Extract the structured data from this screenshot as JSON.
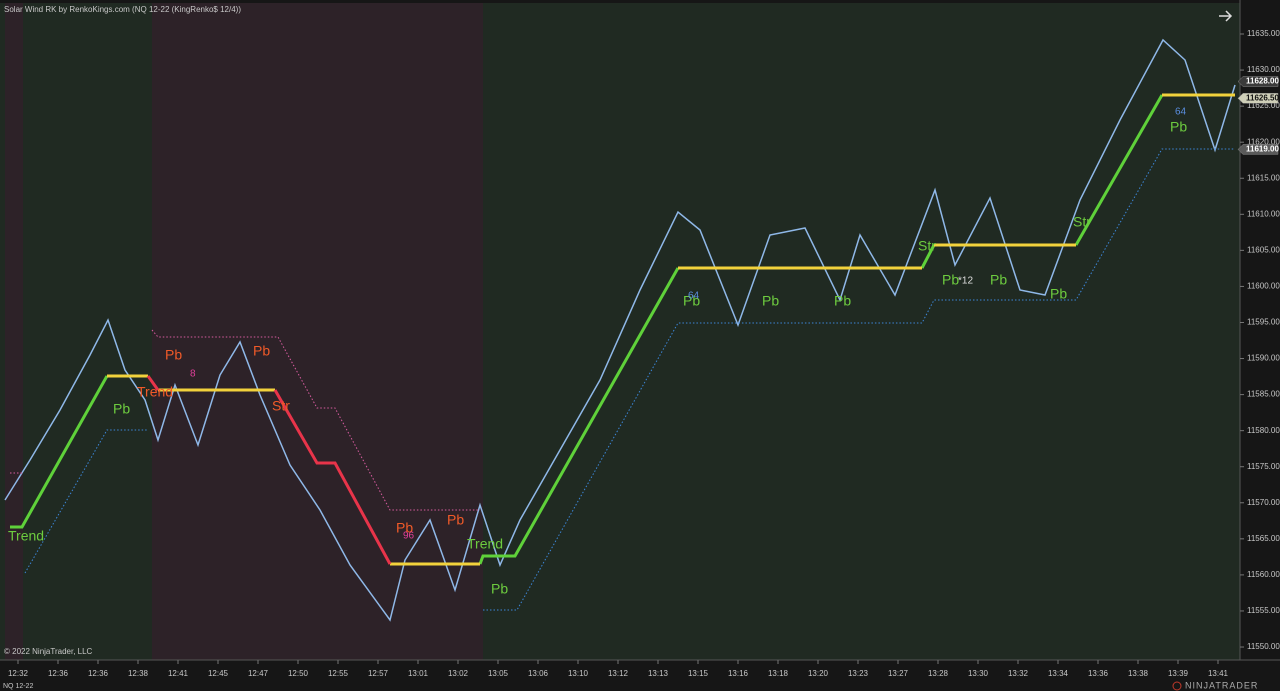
{
  "chart_data": {
    "type": "renko",
    "title": "Solar Wind RK by RenkoKings.com (NQ 12-22 (KingRenko$ 12/4))",
    "categories": [
      "12:32",
      "12:36",
      "12:36",
      "12:38",
      "12:41",
      "12:45",
      "12:47",
      "12:50",
      "12:55",
      "12:57",
      "13:01",
      "13:02",
      "13:05",
      "13:06",
      "13:10",
      "13:12",
      "13:13",
      "13:15",
      "13:16",
      "13:18",
      "13:20",
      "13:23",
      "13:27",
      "13:28",
      "13:30",
      "13:32",
      "13:34",
      "13:36",
      "13:38",
      "13:39",
      "13:41"
    ],
    "xlim": [
      -0.45,
      30.55
    ],
    "ylim": [
      11548.2,
      11639.3
    ],
    "yticks": [
      {
        "value": 11550,
        "label": "11550.00"
      },
      {
        "value": 11555,
        "label": "11555.00"
      },
      {
        "value": 11560,
        "label": "11560.00"
      },
      {
        "value": 11565,
        "label": "11565.00"
      },
      {
        "value": 11570,
        "label": "11570.00"
      },
      {
        "value": 11575,
        "label": "11575.00"
      },
      {
        "value": 11580,
        "label": "11580.00"
      },
      {
        "value": 11585,
        "label": "11585.00"
      },
      {
        "value": 11590,
        "label": "11590.00"
      },
      {
        "value": 11595,
        "label": "11595.00"
      },
      {
        "value": 11600,
        "label": "11600.00"
      },
      {
        "value": 11605,
        "label": "11605.00"
      },
      {
        "value": 11610,
        "label": "11610.00"
      },
      {
        "value": 11615,
        "label": "11615.00"
      },
      {
        "value": 11620,
        "label": "11620.00"
      },
      {
        "value": 11625,
        "label": "11625.00"
      },
      {
        "value": 11630,
        "label": "11630.00"
      },
      {
        "value": 11635,
        "label": "11635.00"
      }
    ],
    "series": [
      {
        "color": "#8fb8e8",
        "style": "solid",
        "width": 1.5,
        "x": [
          -0.325,
          0.3,
          1.05,
          1.8,
          2.25,
          2.675,
          3.175,
          3.5,
          3.925,
          4.5,
          5.05,
          5.55,
          6.05,
          6.8,
          7.55,
          8.3,
          9.3,
          9.675,
          10.3,
          10.925,
          11.55,
          12.05,
          12.55,
          13.55,
          14.55,
          15.55,
          16.5,
          17.05,
          18.0,
          18.8,
          19.675,
          20.55,
          21.05,
          21.925,
          22.925,
          23.425,
          24.3,
          25.05,
          25.675,
          26.55,
          27.55,
          28.625,
          29.175,
          29.925,
          30.425
        ],
        "values": [
          11570.39,
          11575.93,
          11582.86,
          11590.49,
          11595.34,
          11588.41,
          11584.25,
          11578.7,
          11586.33,
          11578.01,
          11587.72,
          11592.29,
          11584.94,
          11575.24,
          11569.0,
          11561.37,
          11553.75,
          11562.07,
          11567.61,
          11557.91,
          11569.69,
          11561.37,
          11567.61,
          11577.32,
          11587.02,
          11599.5,
          11610.32,
          11607.82,
          11594.65,
          11607.13,
          11608.1,
          11598.12,
          11607.13,
          11598.81,
          11613.37,
          11602.97,
          11612.26,
          11599.5,
          11598.81,
          11611.98,
          11623.08,
          11634.17,
          11631.39,
          11618.92,
          11627.93
        ]
      },
      {
        "color": "#5fd13a",
        "style": "solid",
        "width": 3,
        "x": [
          -0.2,
          0.1,
          2.225,
          null,
          11.55,
          11.625,
          12.425,
          16.5,
          null,
          22.6,
          22.9,
          null,
          26.45,
          28.6
        ],
        "values": [
          11566.64,
          11566.64,
          11587.58,
          null,
          11561.51,
          11562.62,
          11562.62,
          11602.55,
          null,
          11602.55,
          11605.74,
          null,
          11605.74,
          11626.54
        ]
      },
      {
        "color": "#f2d23c",
        "style": "solid",
        "width": 3,
        "x": [
          2.225,
          3.25,
          null,
          3.5,
          6.425,
          null,
          9.3,
          11.55,
          null,
          16.5,
          22.6,
          null,
          22.9,
          26.45,
          null,
          28.6,
          30.425
        ],
        "values": [
          11587.58,
          11587.58,
          null,
          11585.64,
          11585.64,
          null,
          11561.51,
          11561.51,
          null,
          11602.55,
          11602.55,
          null,
          11605.74,
          11605.74,
          null,
          11626.54,
          11626.54
        ]
      },
      {
        "color": "#e8344a",
        "style": "solid",
        "width": 3,
        "x": [
          3.25,
          3.5,
          null,
          6.425,
          7.475,
          7.925,
          9.3
        ],
        "values": [
          11587.58,
          11585.64,
          null,
          11585.64,
          11575.52,
          11575.52,
          11561.51
        ]
      },
      {
        "color": "#3c86d8",
        "style": "dotted",
        "width": 1,
        "x": [
          0.175,
          2.225,
          3.25,
          null,
          11.625,
          12.475,
          16.5,
          22.6,
          22.9,
          26.45,
          28.6,
          30.425
        ],
        "values": [
          11560.26,
          11580.09,
          11580.09,
          null,
          11555.13,
          11555.13,
          11594.93,
          11594.93,
          11598.12,
          11598.12,
          11619.05,
          11619.05
        ]
      },
      {
        "color": "#d85ca0",
        "style": "dotted",
        "width": 1,
        "x": [
          -0.2,
          0.1,
          null,
          3.35,
          3.5,
          6.5,
          7.475,
          7.925,
          9.3,
          11.55
        ],
        "values": [
          11574.13,
          11574.13,
          null,
          11593.96,
          11592.99,
          11592.99,
          11583.14,
          11583.14,
          11569.0,
          11569.0
        ]
      }
    ],
    "price_markers": [
      {
        "value": 11628,
        "label": "11628.00"
      },
      {
        "value": 11626.5,
        "label": "11626.50"
      },
      {
        "value": 11619,
        "label": "11619.00"
      }
    ],
    "annotations": [
      "Trend",
      "Pb",
      "Trend",
      "Pb",
      "8",
      "Pb",
      "Str",
      "Pb",
      "96",
      "Pb",
      "Trend",
      "Pb",
      "Pb",
      "64",
      "Pb",
      "Pb",
      "Str",
      "Pb",
      "*12",
      "Pb",
      "Pb",
      "Str",
      "Pb",
      "64"
    ],
    "copyright": "© 2022 NinjaTrader, LLC",
    "instrument": "NQ 12-22",
    "brand": "NINJATRADER"
  }
}
